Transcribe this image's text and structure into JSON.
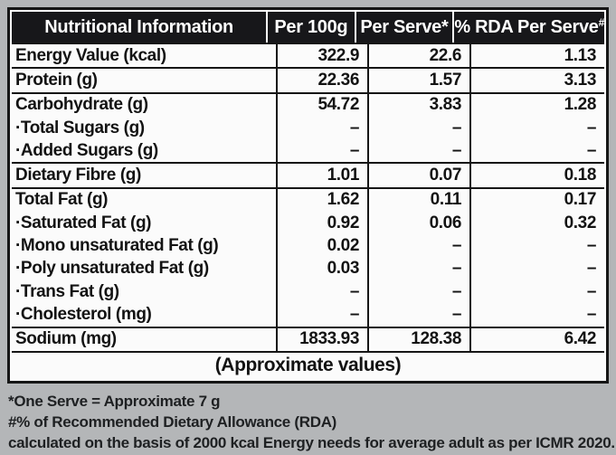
{
  "colors": {
    "page_background": "#b4b6b8",
    "header_background": "#17171a",
    "header_text": "#ffffff",
    "table_background": "#fbfbfb",
    "border": "#161616",
    "body_text": "#131313"
  },
  "table": {
    "header": {
      "col1": "Nutritional Information",
      "col2": "Per 100g",
      "col3": "Per Serve*",
      "col4": "% RDA Per Serve",
      "col4_sup": "#"
    },
    "groups": [
      {
        "rows": [
          {
            "label": "Energy Value (kcal)",
            "per100g": "322.9",
            "perServe": "22.6",
            "rda": "1.13"
          }
        ]
      },
      {
        "rows": [
          {
            "label": "Protein (g)",
            "per100g": "22.36",
            "perServe": "1.57",
            "rda": "3.13"
          }
        ]
      },
      {
        "rows": [
          {
            "label": "Carbohydrate (g)",
            "per100g": "54.72",
            "perServe": "3.83",
            "rda": "1.28"
          },
          {
            "label": "·Total Sugars (g)",
            "per100g": "–",
            "perServe": "–",
            "rda": "–"
          },
          {
            "label": "·Added Sugars (g)",
            "per100g": "–",
            "perServe": "–",
            "rda": "–"
          }
        ]
      },
      {
        "rows": [
          {
            "label": "Dietary Fibre (g)",
            "per100g": "1.01",
            "perServe": "0.07",
            "rda": "0.18"
          }
        ]
      },
      {
        "rows": [
          {
            "label": "Total Fat (g)",
            "per100g": "1.62",
            "perServe": "0.11",
            "rda": "0.17"
          },
          {
            "label": "·Saturated Fat (g)",
            "per100g": "0.92",
            "perServe": "0.06",
            "rda": "0.32"
          },
          {
            "label": "·Mono unsaturated Fat (g)",
            "per100g": "0.02",
            "perServe": "–",
            "rda": "–"
          },
          {
            "label": "·Poly unsaturated Fat (g)",
            "per100g": "0.03",
            "perServe": "–",
            "rda": "–"
          },
          {
            "label": "·Trans Fat (g)",
            "per100g": "–",
            "perServe": "–",
            "rda": "–"
          },
          {
            "label": "·Cholesterol (mg)",
            "per100g": "–",
            "perServe": "–",
            "rda": "–"
          }
        ]
      },
      {
        "rows": [
          {
            "label": "Sodium (mg)",
            "per100g": "1833.93",
            "perServe": "128.38",
            "rda": "6.42"
          }
        ]
      }
    ],
    "approx_note": "(Approximate values)"
  },
  "footnotes": {
    "line1": "*One Serve = Approximate 7 g",
    "line2": "#% of Recommended Dietary Allowance (RDA)",
    "line3": "calculated on the basis of 2000 kcal Energy needs for average adult as per ICMR 2020."
  }
}
